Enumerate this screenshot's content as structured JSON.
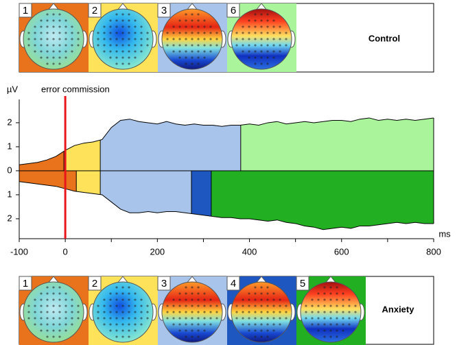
{
  "chart_data": {
    "type": "area",
    "y_axis_label": "µV",
    "x_axis_label": "ms",
    "annotation": {
      "text": "error commission",
      "x": 0,
      "color": "#e8161b"
    },
    "xlim": [
      -100,
      800
    ],
    "xticks": [
      -100,
      0,
      200,
      400,
      600,
      800
    ],
    "xminorticks": [
      100,
      300,
      500,
      700
    ],
    "ylim": [
      -2.83,
      2.97
    ],
    "yticks": [
      {
        "value": -2,
        "label": "2"
      },
      {
        "value": -1,
        "label": "1"
      },
      0,
      1,
      2
    ],
    "x": [
      -100,
      -80,
      -60,
      -40,
      -20,
      0,
      20,
      40,
      60,
      80,
      100,
      120,
      140,
      160,
      180,
      200,
      220,
      240,
      260,
      280,
      300,
      320,
      340,
      360,
      380,
      400,
      420,
      440,
      460,
      480,
      500,
      520,
      540,
      560,
      580,
      600,
      620,
      640,
      660,
      680,
      700,
      720,
      740,
      760,
      780,
      800
    ],
    "series": [
      {
        "name": "Control",
        "values": [
          0.25,
          0.3,
          0.35,
          0.45,
          0.6,
          0.85,
          1.05,
          1.15,
          1.2,
          1.3,
          1.8,
          2.1,
          2.15,
          2.05,
          2.0,
          1.95,
          2.05,
          1.95,
          1.9,
          1.95,
          1.9,
          1.9,
          1.85,
          1.9,
          1.9,
          1.95,
          1.9,
          2.0,
          2.05,
          1.95,
          2.0,
          2.05,
          2.0,
          2.05,
          2.1,
          2.1,
          2.05,
          2.15,
          2.2,
          2.1,
          2.15,
          2.1,
          2.15,
          2.1,
          2.15,
          2.2
        ],
        "segments": [
          {
            "label": "1",
            "start": -100,
            "end": -3,
            "color": "#e8731c"
          },
          {
            "label": "2",
            "start": -3,
            "end": 76,
            "color": "#fde25a"
          },
          {
            "label": "3",
            "start": 76,
            "end": 381,
            "color": "#a9c4ea"
          },
          {
            "label": "6",
            "start": 381,
            "end": 800,
            "color": "#aaf59c"
          }
        ]
      },
      {
        "name": "Anxiety",
        "values": [
          -0.45,
          -0.5,
          -0.55,
          -0.6,
          -0.65,
          -0.75,
          -0.85,
          -0.9,
          -0.95,
          -1.0,
          -1.3,
          -1.6,
          -1.75,
          -1.75,
          -1.7,
          -1.75,
          -1.7,
          -1.7,
          -1.75,
          -1.8,
          -1.85,
          -1.9,
          -1.95,
          -1.95,
          -2.0,
          -2.0,
          -2.05,
          -2.1,
          -2.05,
          -2.15,
          -2.2,
          -2.3,
          -2.35,
          -2.45,
          -2.4,
          -2.35,
          -2.4,
          -2.3,
          -2.3,
          -2.25,
          -2.2,
          -2.15,
          -2.2,
          -2.15,
          -2.2,
          -2.2
        ],
        "segments": [
          {
            "label": "1",
            "start": -100,
            "end": 24,
            "color": "#e8731c"
          },
          {
            "label": "2",
            "start": 24,
            "end": 76,
            "color": "#fde25a"
          },
          {
            "label": "3",
            "start": 76,
            "end": 274,
            "color": "#a9c4ea"
          },
          {
            "label": "4",
            "start": 274,
            "end": 317,
            "color": "#1f57c0"
          },
          {
            "label": "5",
            "start": 317,
            "end": 800,
            "color": "#22b022"
          }
        ]
      }
    ]
  }
}
